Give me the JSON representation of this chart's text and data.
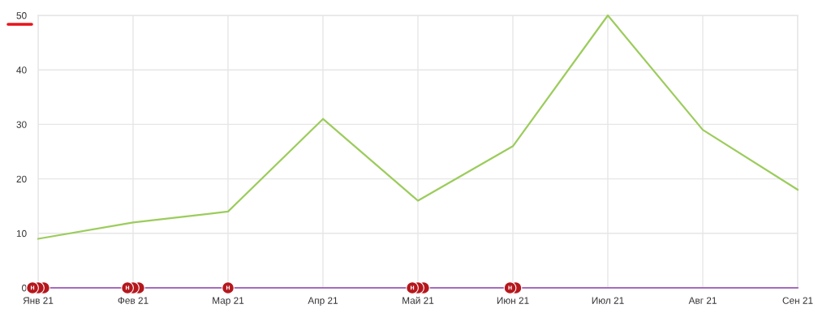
{
  "chart_data": {
    "type": "line",
    "categories": [
      "Янв 21",
      "Фев 21",
      "Мар 21",
      "Апр 21",
      "Май 21",
      "Июн 21",
      "Июл 21",
      "Авг 21",
      "Сен 21"
    ],
    "ylim": [
      0,
      50
    ],
    "yticks": [
      0,
      10,
      20,
      30,
      40,
      50
    ],
    "grid": true,
    "series": [
      {
        "color": "#9ccc5c",
        "values": [
          9,
          12,
          14,
          31,
          16,
          26,
          50,
          29,
          18
        ]
      },
      {
        "color": "#a66bbe",
        "values": [
          0,
          0,
          0,
          0,
          0,
          0,
          0,
          0,
          0
        ]
      },
      {
        "type": "scatter",
        "color": "#b5171d",
        "marker": "circle",
        "x": [
          "Янв 21",
          "Янв 21",
          "Янв 21",
          "Фев 21",
          "Фев 21",
          "Фев 21",
          "Мар 21",
          "Май 21",
          "Май 21",
          "Май 21",
          "Июн 21",
          "Июн 21"
        ],
        "values": [
          0,
          0,
          0,
          0,
          0,
          0,
          0,
          0,
          0,
          0,
          0,
          0
        ],
        "value_labels": [
          "н",
          null,
          null,
          "н",
          null,
          null,
          "н",
          "н",
          null,
          null,
          "н",
          null
        ]
      }
    ]
  }
}
